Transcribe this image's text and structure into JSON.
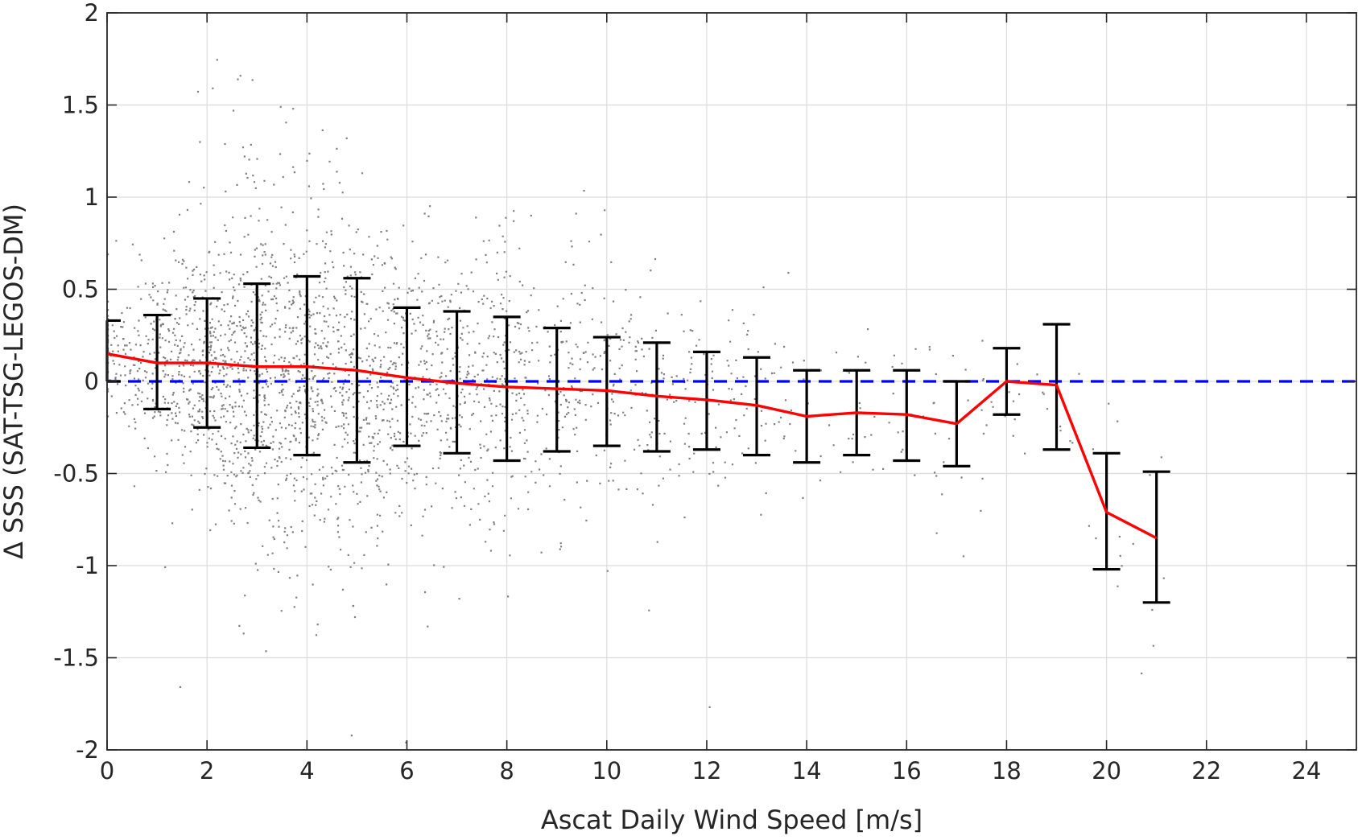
{
  "chart_data": {
    "type": "scatter",
    "xlabel": "Ascat Daily Wind Speed [m/s]",
    "ylabel": "Δ SSS (SAT-TSG-LEGOS-DM)",
    "xlim": [
      0,
      25
    ],
    "ylim": [
      -2,
      2
    ],
    "xticks": [
      0,
      2,
      4,
      6,
      8,
      10,
      12,
      14,
      16,
      18,
      20,
      22,
      24
    ],
    "yticks": [
      -2,
      -1.5,
      -1,
      -0.5,
      0,
      0.5,
      1,
      1.5,
      2
    ],
    "xtick_labels": [
      "0",
      "2",
      "4",
      "6",
      "8",
      "10",
      "12",
      "14",
      "16",
      "18",
      "20",
      "22",
      "24"
    ],
    "ytick_labels": [
      "-2",
      "-1.5",
      "-1",
      "-0.5",
      "0",
      "0.5",
      "1",
      "1.5",
      "2"
    ],
    "grid": true,
    "colors": {
      "scatter": "#808080",
      "mean_line": "#ff0000",
      "zero_line": "#0000ff",
      "error_bars": "#000000",
      "grid": "#dcdcdc",
      "axes": "#262626"
    },
    "scatter_density": {
      "x_range": [
        0,
        21.2
      ],
      "dense_core_sd": "approx ±0.4 around the binned mean",
      "outlier_range": [
        -2,
        2
      ]
    },
    "binned_mean": {
      "x": [
        0,
        1,
        2,
        3,
        4,
        5,
        6,
        7,
        8,
        9,
        10,
        11,
        12,
        13,
        14,
        15,
        16,
        17,
        18,
        19,
        20,
        21
      ],
      "y": [
        0.15,
        0.1,
        0.1,
        0.08,
        0.08,
        0.06,
        0.02,
        -0.01,
        -0.03,
        -0.04,
        -0.05,
        -0.08,
        -0.1,
        -0.13,
        -0.19,
        -0.17,
        -0.18,
        -0.23,
        0.0,
        -0.02,
        -0.71,
        -0.85
      ]
    },
    "error_bars": {
      "x": [
        0,
        1,
        2,
        3,
        4,
        5,
        6,
        7,
        8,
        9,
        10,
        11,
        12,
        13,
        14,
        15,
        16,
        17,
        18,
        19,
        20,
        21
      ],
      "upper": [
        0.33,
        0.36,
        0.45,
        0.53,
        0.57,
        0.56,
        0.4,
        0.38,
        0.35,
        0.29,
        0.24,
        0.21,
        0.16,
        0.13,
        0.06,
        0.06,
        0.06,
        0.0,
        0.18,
        0.31,
        -0.39,
        -0.49
      ],
      "lower": [
        0.0,
        -0.15,
        -0.25,
        -0.36,
        -0.4,
        -0.44,
        -0.35,
        -0.39,
        -0.43,
        -0.38,
        -0.35,
        -0.38,
        -0.37,
        -0.4,
        -0.44,
        -0.4,
        -0.43,
        -0.46,
        -0.18,
        -0.37,
        -1.02,
        -1.2
      ]
    },
    "reference_line": {
      "y": 0,
      "style": "dashed"
    }
  }
}
